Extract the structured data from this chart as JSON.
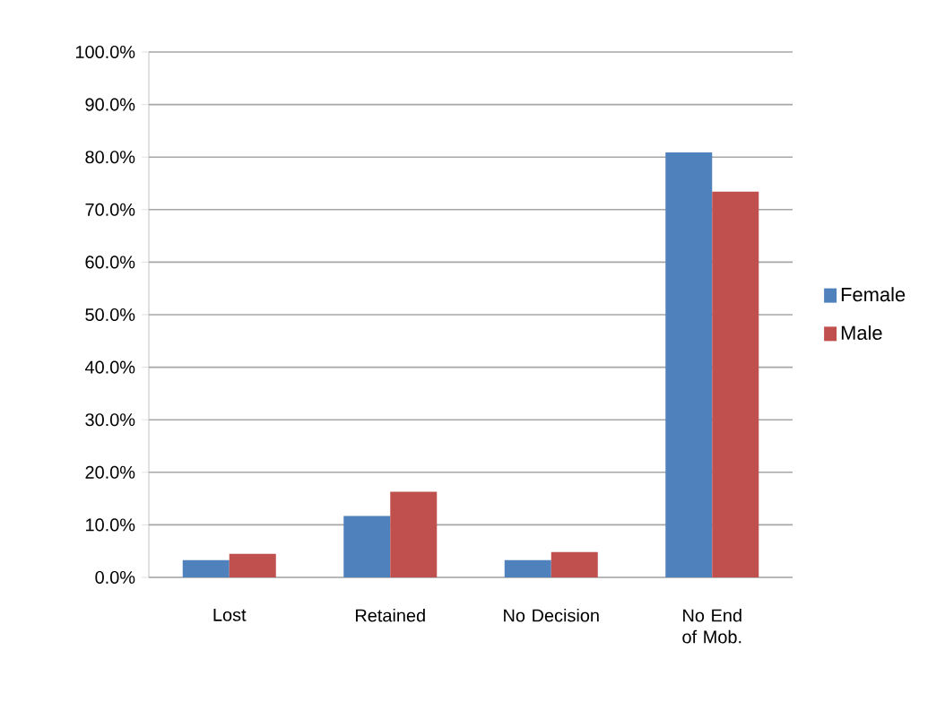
{
  "chart_data": {
    "type": "bar",
    "categories": [
      "Lost",
      "Retained",
      "No Decision",
      "No End of Mob."
    ],
    "series": [
      {
        "name": "Female",
        "color": "#4f81bd",
        "values": [
          3.3,
          11.7,
          3.3,
          80.9
        ]
      },
      {
        "name": "Male",
        "color": "#c0504d",
        "values": [
          4.5,
          16.3,
          4.8,
          73.4
        ]
      }
    ],
    "ylim": [
      0,
      100
    ],
    "yticks": [
      {
        "value": 0,
        "label": "0.0%"
      },
      {
        "value": 10,
        "label": "10.0%"
      },
      {
        "value": 20,
        "label": "20.0%"
      },
      {
        "value": 30,
        "label": "30.0%"
      },
      {
        "value": 40,
        "label": "40.0%"
      },
      {
        "value": 50,
        "label": "50.0%"
      },
      {
        "value": 60,
        "label": "60.0%"
      },
      {
        "value": 70,
        "label": "70.0%"
      },
      {
        "value": 80,
        "label": "80.0%"
      },
      {
        "value": 90,
        "label": "90.0%"
      },
      {
        "value": 100,
        "label": "100.0%"
      }
    ],
    "grid": "y",
    "legend": "right"
  }
}
